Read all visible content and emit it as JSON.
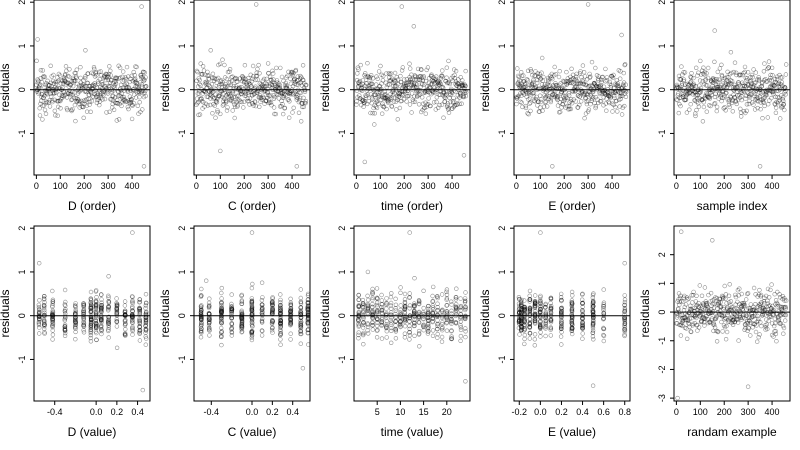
{
  "figure": {
    "background": "#ffffff"
  },
  "chart_data": [
    {
      "type": "scatter",
      "xlabel": "D (order)",
      "ylabel": "residuals",
      "xlim": [
        -10,
        475
      ],
      "ylim": [
        -1.95,
        2.05
      ],
      "xticks": [
        0,
        100,
        200,
        300,
        400
      ],
      "xtick_labels": [
        "0",
        "100",
        "200",
        "300",
        "400"
      ],
      "yticks": [
        -1,
        0,
        1,
        2
      ],
      "ytick_labels": [
        "-1",
        "0",
        "1",
        "2"
      ],
      "hline": 0,
      "n_points": 460,
      "x_kind": "order",
      "sample_points": [
        [
          5,
          1.15
        ],
        [
          40,
          -0.55
        ],
        [
          120,
          0.35
        ],
        [
          205,
          0.9
        ],
        [
          330,
          -0.3
        ],
        [
          440,
          1.9
        ],
        [
          450,
          -1.75
        ]
      ]
    },
    {
      "type": "scatter",
      "xlabel": "C (order)",
      "ylabel": "residuals",
      "xlim": [
        -10,
        475
      ],
      "ylim": [
        -1.95,
        2.05
      ],
      "xticks": [
        0,
        100,
        200,
        300,
        400
      ],
      "xtick_labels": [
        "0",
        "100",
        "200",
        "300",
        "400"
      ],
      "yticks": [
        -1,
        0,
        1,
        2
      ],
      "ytick_labels": [
        "-1",
        "0",
        "1",
        "2"
      ],
      "hline": 0,
      "n_points": 460,
      "x_kind": "order",
      "sample_points": [
        [
          250,
          1.95
        ],
        [
          100,
          -1.4
        ],
        [
          300,
          0.6
        ],
        [
          420,
          -1.75
        ],
        [
          60,
          0.9
        ]
      ]
    },
    {
      "type": "scatter",
      "xlabel": "time (order)",
      "ylabel": "residuals",
      "xlim": [
        -10,
        475
      ],
      "ylim": [
        -1.95,
        2.05
      ],
      "xticks": [
        0,
        100,
        200,
        300,
        400
      ],
      "xtick_labels": [
        "0",
        "100",
        "200",
        "300",
        "400"
      ],
      "yticks": [
        -1,
        0,
        1,
        2
      ],
      "ytick_labels": [
        "-1",
        "0",
        "1",
        "2"
      ],
      "hline": 0,
      "n_points": 460,
      "x_kind": "order",
      "sample_points": [
        [
          190,
          1.9
        ],
        [
          240,
          1.45
        ],
        [
          35,
          -1.65
        ],
        [
          450,
          -1.5
        ]
      ]
    },
    {
      "type": "scatter",
      "xlabel": "E (order)",
      "ylabel": "residuals",
      "xlim": [
        -10,
        475
      ],
      "ylim": [
        -1.95,
        2.05
      ],
      "xticks": [
        0,
        100,
        200,
        300,
        400
      ],
      "xtick_labels": [
        "0",
        "100",
        "200",
        "300",
        "400"
      ],
      "yticks": [
        -1,
        0,
        1,
        2
      ],
      "ytick_labels": [
        "-1",
        "0",
        "1",
        "2"
      ],
      "hline": 0,
      "n_points": 460,
      "x_kind": "order",
      "sample_points": [
        [
          300,
          1.95
        ],
        [
          440,
          1.25
        ],
        [
          150,
          -1.75
        ],
        [
          20,
          0.4
        ]
      ]
    },
    {
      "type": "scatter",
      "xlabel": "sample index",
      "ylabel": "residuals",
      "xlim": [
        -10,
        475
      ],
      "ylim": [
        -1.95,
        2.05
      ],
      "xticks": [
        0,
        100,
        200,
        300,
        400
      ],
      "xtick_labels": [
        "0",
        "100",
        "200",
        "300",
        "400"
      ],
      "yticks": [
        -1,
        0,
        1,
        2
      ],
      "ytick_labels": [
        "-1",
        "0",
        "1",
        "2"
      ],
      "hline": 0,
      "n_points": 460,
      "x_kind": "order",
      "sample_points": [
        [
          160,
          1.35
        ],
        [
          350,
          -1.75
        ],
        [
          400,
          0.5
        ],
        [
          80,
          -0.6
        ]
      ]
    },
    {
      "type": "scatter",
      "xlabel": "D (value)",
      "ylabel": "residuals",
      "xlim": [
        -0.6,
        0.52
      ],
      "ylim": [
        -1.95,
        2.05
      ],
      "xticks": [
        -0.4,
        0.0,
        0.2,
        0.4
      ],
      "xtick_labels": [
        "-0.4",
        "0.0",
        "0.2",
        "0.4"
      ],
      "yticks": [
        -1,
        0,
        1,
        2
      ],
      "ytick_labels": [
        "-1",
        "0",
        "1",
        "2"
      ],
      "hline": 0,
      "n_points": 460,
      "x_kind": "value",
      "x_groups": [
        -0.55,
        -0.5,
        -0.42,
        -0.3,
        -0.2,
        -0.12,
        -0.05,
        0.0,
        0.05,
        0.12,
        0.2,
        0.28,
        0.35,
        0.42,
        0.48
      ],
      "sample_points": [
        [
          0.35,
          1.9
        ],
        [
          0.45,
          -1.7
        ],
        [
          -0.55,
          1.2
        ],
        [
          0.12,
          0.9
        ]
      ]
    },
    {
      "type": "scatter",
      "xlabel": "C (value)",
      "ylabel": "residuals",
      "xlim": [
        -0.57,
        0.57
      ],
      "ylim": [
        -1.95,
        2.05
      ],
      "xticks": [
        -0.4,
        0.0,
        0.2,
        0.4
      ],
      "xtick_labels": [
        "-0.4",
        "0.0",
        "0.2",
        "0.4"
      ],
      "yticks": [
        -1,
        0,
        1,
        2
      ],
      "ytick_labels": [
        "-1",
        "0",
        "1",
        "2"
      ],
      "hline": 0,
      "n_points": 460,
      "x_kind": "value",
      "x_groups": [
        -0.5,
        -0.42,
        -0.3,
        -0.2,
        -0.1,
        0.0,
        0.1,
        0.2,
        0.28,
        0.38,
        0.48,
        0.55
      ],
      "sample_points": [
        [
          0.0,
          1.9
        ],
        [
          0.5,
          -1.2
        ],
        [
          -0.45,
          0.8
        ]
      ]
    },
    {
      "type": "scatter",
      "xlabel": "time (value)",
      "ylabel": "residuals",
      "xlim": [
        0,
        25
      ],
      "ylim": [
        -1.95,
        2.05
      ],
      "xticks": [
        5,
        10,
        15,
        20
      ],
      "xtick_labels": [
        "5",
        "10",
        "15",
        "20"
      ],
      "yticks": [
        -1,
        0,
        1,
        2
      ],
      "ytick_labels": [
        "-1",
        "0",
        "1",
        "2"
      ],
      "hline": 0,
      "n_points": 460,
      "x_kind": "value",
      "x_groups": [
        1,
        2,
        3,
        4,
        5,
        6,
        7,
        8,
        9,
        10,
        11,
        12,
        13,
        14,
        15,
        16,
        17,
        18,
        19,
        20,
        21,
        22,
        23,
        24
      ],
      "sample_points": [
        [
          12,
          1.9
        ],
        [
          24,
          -1.5
        ],
        [
          3,
          1.0
        ]
      ]
    },
    {
      "type": "scatter",
      "xlabel": "E (value)",
      "ylabel": "residuals",
      "xlim": [
        -0.25,
        0.85
      ],
      "ylim": [
        -1.95,
        2.05
      ],
      "xticks": [
        -0.2,
        0.0,
        0.2,
        0.4,
        0.6,
        0.8
      ],
      "xtick_labels": [
        "-0.2",
        "0.0",
        "0.2",
        "0.4",
        "0.6",
        "0.8"
      ],
      "yticks": [
        -1,
        0,
        1,
        2
      ],
      "ytick_labels": [
        "-1",
        "0",
        "1",
        "2"
      ],
      "hline": 0,
      "n_points": 460,
      "x_kind": "value",
      "x_groups": [
        -0.2,
        -0.18,
        -0.15,
        -0.1,
        -0.05,
        0.0,
        0.05,
        0.1,
        0.2,
        0.3,
        0.4,
        0.5,
        0.6,
        0.8
      ],
      "sample_points": [
        [
          0.8,
          1.2
        ],
        [
          0.5,
          -1.6
        ],
        [
          0.0,
          1.9
        ]
      ]
    },
    {
      "type": "scatter",
      "xlabel": "randam example",
      "ylabel": "residuals",
      "xlim": [
        -10,
        475
      ],
      "ylim": [
        -3.1,
        3.0
      ],
      "xticks": [
        0,
        100,
        200,
        300,
        400
      ],
      "xtick_labels": [
        "0",
        "100",
        "200",
        "300",
        "400"
      ],
      "yticks": [
        -3,
        -2,
        -1,
        0,
        1,
        2
      ],
      "ytick_labels": [
        "-3",
        "-2",
        "-1",
        "0",
        "1",
        "2"
      ],
      "hline": 0,
      "n_points": 460,
      "x_kind": "order",
      "sample_points": [
        [
          20,
          2.8
        ],
        [
          5,
          -3.0
        ],
        [
          300,
          -2.6
        ],
        [
          150,
          2.5
        ]
      ]
    }
  ]
}
